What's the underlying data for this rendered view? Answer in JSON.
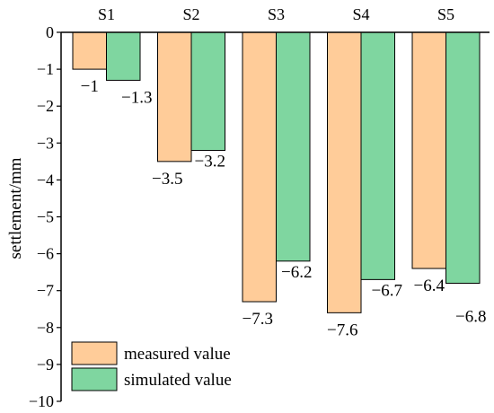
{
  "chart_data": {
    "type": "bar",
    "categories": [
      "S1",
      "S2",
      "S3",
      "S4",
      "S5"
    ],
    "series": [
      {
        "name": "measured value",
        "values": [
          -1,
          -3.5,
          -7.3,
          -7.6,
          -6.4
        ],
        "labels": [
          "−1",
          "−3.5",
          "−7.3",
          "−7.6",
          "−6.4"
        ],
        "color": "#FFCC99"
      },
      {
        "name": "simulated value",
        "values": [
          -1.3,
          -3.2,
          -6.2,
          -6.7,
          -6.8
        ],
        "labels": [
          "−1.3",
          "−3.2",
          "−6.2",
          "−6.7",
          "−6.8"
        ],
        "color": "#7FD6A0"
      }
    ],
    "ylabel": "settlement/mm",
    "ylim": [
      -10,
      0
    ],
    "yticks": [
      0,
      -1,
      -2,
      -3,
      -4,
      -5,
      -6,
      -7,
      -8,
      -9,
      -10
    ],
    "ytick_labels": [
      "0",
      "−1",
      "−2",
      "−3",
      "−4",
      "−5",
      "−6",
      "−7",
      "−8",
      "−9",
      "−10"
    ],
    "x_axis_position": "top",
    "legend_position": "bottom-left",
    "grid": false
  }
}
